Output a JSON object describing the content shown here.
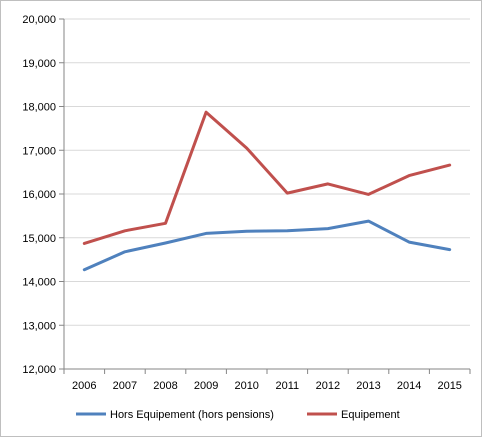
{
  "chart_data": {
    "type": "line",
    "title": "",
    "xlabel": "",
    "ylabel": "",
    "x": [
      "2006",
      "2007",
      "2008",
      "2009",
      "2010",
      "2011",
      "2012",
      "2013",
      "2014",
      "2015"
    ],
    "ylim": [
      12000,
      20000
    ],
    "yticks": [
      "12,000",
      "13,000",
      "14,000",
      "15,000",
      "16,000",
      "17,000",
      "18,000",
      "19,000",
      "20,000"
    ],
    "grid": true,
    "legend_position": "bottom",
    "series": [
      {
        "name": "Hors Equipement (hors pensions)",
        "color": "#4f81bd",
        "values": [
          14270,
          14680,
          14880,
          15100,
          15150,
          15160,
          15210,
          15380,
          14900,
          14730
        ]
      },
      {
        "name": "Equipement",
        "color": "#c0504d",
        "values": [
          14870,
          15160,
          15330,
          17870,
          17050,
          16020,
          16230,
          15990,
          16420,
          16660
        ]
      }
    ]
  }
}
